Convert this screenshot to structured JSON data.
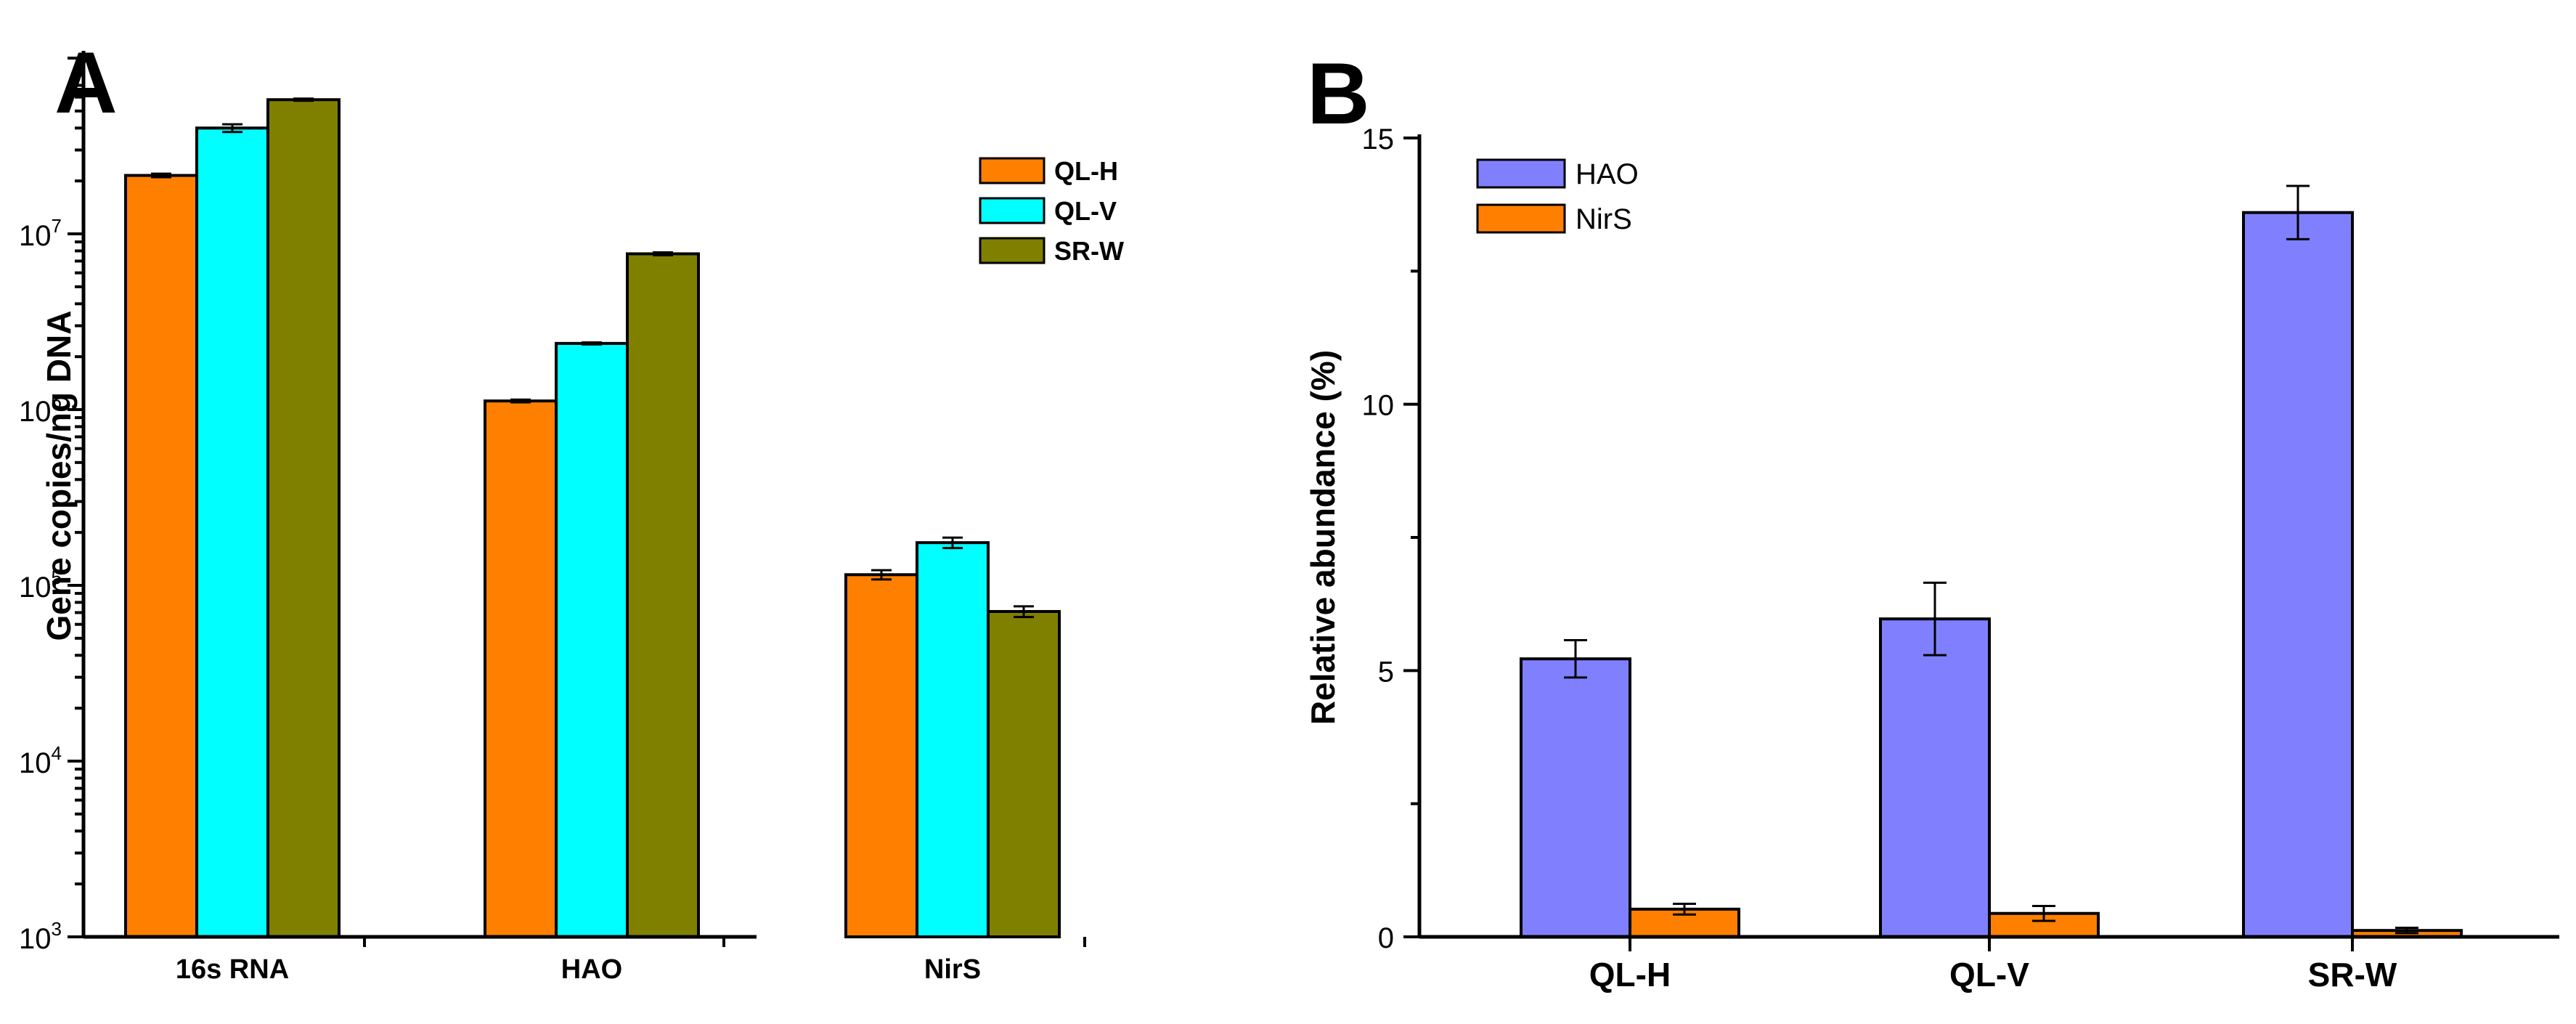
{
  "chart_data": [
    {
      "panel": "A",
      "type": "bar",
      "yscale": "log",
      "title": "",
      "xlabel": "",
      "ylabel": "Gene copies/ng DNA",
      "ylim": [
        1000,
        100000000
      ],
      "y_ticks": [
        {
          "base": "10",
          "exp": "3"
        },
        {
          "base": "10",
          "exp": "4"
        },
        {
          "base": "10",
          "exp": "5"
        },
        {
          "base": "10",
          "exp": "6"
        },
        {
          "base": "10",
          "exp": "7"
        }
      ],
      "categories": [
        "16s RNA",
        "HAO",
        "NirS"
      ],
      "series": [
        {
          "name": "QL-H",
          "color": "#ff8000",
          "values": [
            21500000,
            1120000,
            115000
          ],
          "errors": [
            500000,
            20000,
            7000
          ]
        },
        {
          "name": "QL-V",
          "color": "#00ffff",
          "values": [
            40000000,
            2380000,
            175000
          ],
          "errors": [
            2000000,
            30000,
            12000
          ]
        },
        {
          "name": "SR-W",
          "color": "#808000",
          "values": [
            58000000,
            7700000,
            71000
          ],
          "errors": [
            800000,
            150000,
            5000
          ]
        }
      ],
      "legend_position": "top-right"
    },
    {
      "panel": "B",
      "type": "bar",
      "title": "",
      "xlabel": "",
      "ylabel": "Relative abundance (%)",
      "ylim": [
        0,
        15
      ],
      "y_ticks": [
        "0",
        "5",
        "10",
        "15"
      ],
      "categories": [
        "QL-H",
        "QL-V",
        "SR-W"
      ],
      "series": [
        {
          "name": "HAO",
          "color": "#8080ff",
          "values": [
            5.22,
            5.97,
            13.6
          ],
          "errors": [
            0.35,
            0.68,
            0.5
          ]
        },
        {
          "name": "NirS",
          "color": "#ff8000",
          "values": [
            0.52,
            0.44,
            0.12
          ],
          "errors": [
            0.1,
            0.14,
            0.05
          ]
        }
      ],
      "legend_position": "top-left"
    }
  ]
}
